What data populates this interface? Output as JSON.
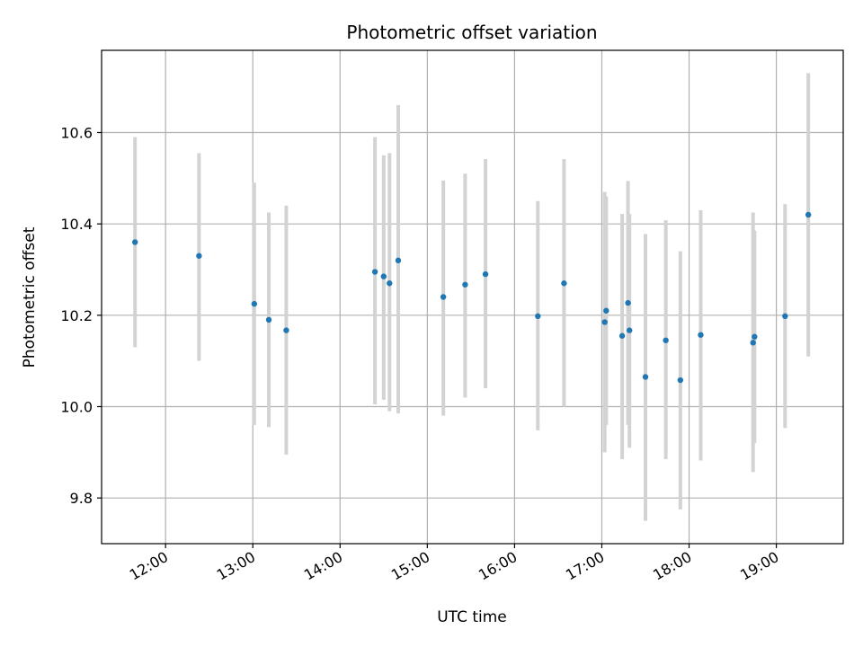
{
  "chart_data": {
    "type": "scatter",
    "title": "Photometric offset variation",
    "xlabel": "UTC time",
    "ylabel": "Photometric offset",
    "xlim": [
      "11:16",
      "19:46"
    ],
    "ylim": [
      9.7,
      10.78
    ],
    "grid": true,
    "x_ticks": [
      "12:00",
      "13:00",
      "14:00",
      "15:00",
      "16:00",
      "17:00",
      "18:00",
      "19:00"
    ],
    "y_ticks": [
      "9.8",
      "10.0",
      "10.2",
      "10.4",
      "10.6"
    ],
    "colors": {
      "points": "#1f77b4",
      "errorbars": "#d3d3d3",
      "grid": "#b0b0b0"
    },
    "series": [
      {
        "points": [
          {
            "x": "11:39",
            "y": 10.36,
            "ylow": 10.13,
            "yhigh": 10.59
          },
          {
            "x": "12:23",
            "y": 10.33,
            "ylow": 10.1,
            "yhigh": 10.555
          },
          {
            "x": "13:01",
            "y": 10.225,
            "ylow": 9.96,
            "yhigh": 10.49
          },
          {
            "x": "13:11",
            "y": 10.19,
            "ylow": 9.955,
            "yhigh": 10.425
          },
          {
            "x": "13:23",
            "y": 10.167,
            "ylow": 9.895,
            "yhigh": 10.44
          },
          {
            "x": "14:24",
            "y": 10.295,
            "ylow": 10.005,
            "yhigh": 10.59
          },
          {
            "x": "14:30",
            "y": 10.285,
            "ylow": 10.015,
            "yhigh": 10.55
          },
          {
            "x": "14:34",
            "y": 10.27,
            "ylow": 9.99,
            "yhigh": 10.555
          },
          {
            "x": "14:40",
            "y": 10.32,
            "ylow": 9.985,
            "yhigh": 10.66
          },
          {
            "x": "15:11",
            "y": 10.24,
            "ylow": 9.98,
            "yhigh": 10.495
          },
          {
            "x": "15:26",
            "y": 10.267,
            "ylow": 10.02,
            "yhigh": 10.51
          },
          {
            "x": "15:40",
            "y": 10.29,
            "ylow": 10.04,
            "yhigh": 10.542
          },
          {
            "x": "16:16",
            "y": 10.198,
            "ylow": 9.948,
            "yhigh": 10.45
          },
          {
            "x": "16:34",
            "y": 10.27,
            "ylow": 10.0,
            "yhigh": 10.542
          },
          {
            "x": "17:02",
            "y": 10.185,
            "ylow": 9.9,
            "yhigh": 10.47
          },
          {
            "x": "17:03",
            "y": 10.21,
            "ylow": 9.96,
            "yhigh": 10.46
          },
          {
            "x": "17:14",
            "y": 10.155,
            "ylow": 9.885,
            "yhigh": 10.422
          },
          {
            "x": "17:18",
            "y": 10.227,
            "ylow": 9.96,
            "yhigh": 10.494
          },
          {
            "x": "17:19",
            "y": 10.167,
            "ylow": 9.91,
            "yhigh": 10.422
          },
          {
            "x": "17:30",
            "y": 10.065,
            "ylow": 9.75,
            "yhigh": 10.378
          },
          {
            "x": "17:44",
            "y": 10.145,
            "ylow": 9.885,
            "yhigh": 10.408
          },
          {
            "x": "17:54",
            "y": 10.058,
            "ylow": 9.775,
            "yhigh": 10.34
          },
          {
            "x": "18:08",
            "y": 10.157,
            "ylow": 9.882,
            "yhigh": 10.43
          },
          {
            "x": "18:44",
            "y": 10.14,
            "ylow": 9.857,
            "yhigh": 10.425
          },
          {
            "x": "18:45",
            "y": 10.153,
            "ylow": 9.92,
            "yhigh": 10.385
          },
          {
            "x": "19:06",
            "y": 10.198,
            "ylow": 9.953,
            "yhigh": 10.443
          },
          {
            "x": "19:22",
            "y": 10.42,
            "ylow": 10.11,
            "yhigh": 10.73
          }
        ]
      }
    ]
  }
}
